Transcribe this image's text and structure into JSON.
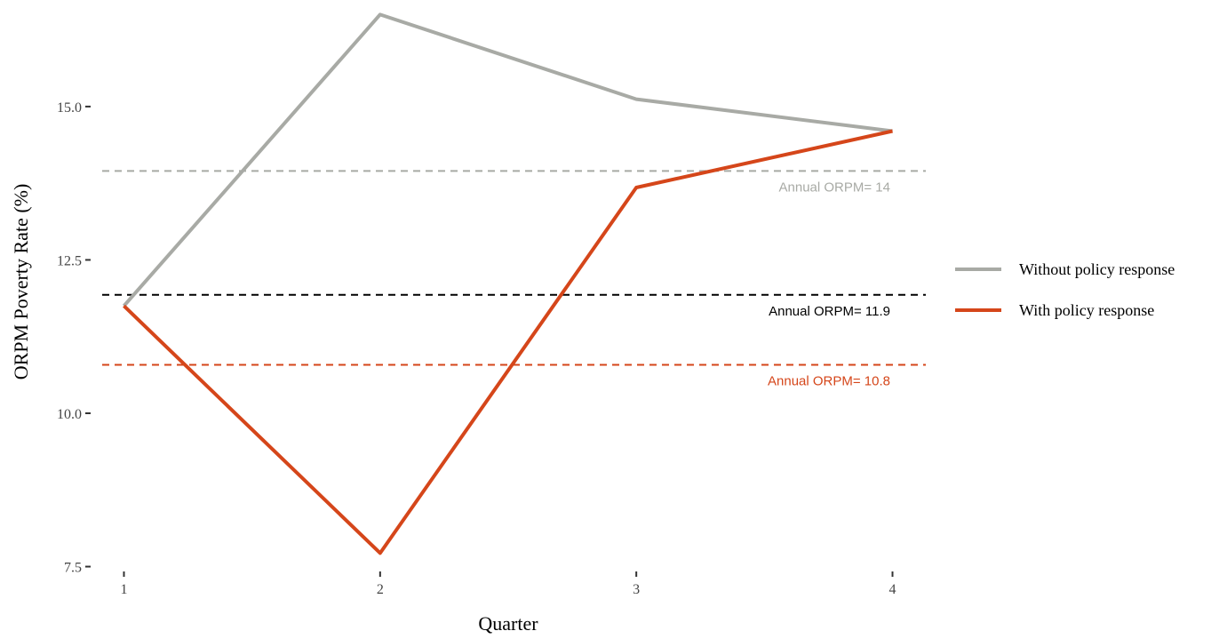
{
  "chart_data": {
    "type": "line",
    "title": "",
    "xlabel": "Quarter",
    "ylabel": "ORPM Poverty Rate (%)",
    "x": [
      1,
      2,
      3,
      4
    ],
    "x_tick_labels": [
      "1",
      "2",
      "3",
      "4"
    ],
    "xlim": [
      0.87,
      4.13
    ],
    "ylim": [
      7.45,
      16.65
    ],
    "y_ticks": [
      7.5,
      10.0,
      12.5,
      15.0
    ],
    "y_tick_labels": [
      "7.5",
      "10.0",
      "12.5",
      "15.0"
    ],
    "grid": false,
    "legend_position": "right",
    "series": [
      {
        "name": "Without policy response",
        "color": "#A8AAA5",
        "values": [
          11.75,
          16.5,
          15.12,
          14.6
        ]
      },
      {
        "name": "With policy response",
        "color": "#D5461A",
        "values": [
          11.75,
          7.72,
          13.68,
          14.6
        ]
      }
    ],
    "reference_lines": [
      {
        "value": 13.95,
        "label": "Annual ORPM= 14",
        "color": "#A8AAA5"
      },
      {
        "value": 11.93,
        "label": "Annual ORPM= 11.9",
        "color": "#000000"
      },
      {
        "value": 10.79,
        "label": "Annual ORPM= 10.8",
        "color": "#D5461A"
      }
    ]
  }
}
